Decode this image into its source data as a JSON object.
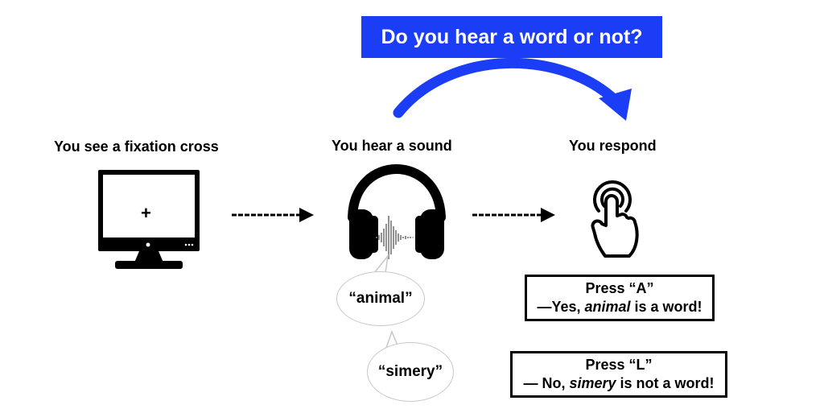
{
  "title": "Do you hear a word or not?",
  "steps": {
    "see": "You see a fixation cross",
    "hear": "You hear a sound",
    "respond": "You respond"
  },
  "monitor": {
    "cross": "+"
  },
  "bubbles": {
    "word": "“animal”",
    "nonword": "“simery”"
  },
  "responses": {
    "a": {
      "line1": "Press “A”",
      "line2_prefix": "—Yes, ",
      "line2_italic": "animal",
      "line2_suffix": " is a word!"
    },
    "l": {
      "line1": "Press “L”",
      "line2_prefix": "— No, ",
      "line2_italic": "simery",
      "line2_suffix": " is not a word!"
    }
  },
  "colors": {
    "accent": "#1a3df5",
    "ink": "#000000",
    "bubble_border": "#c8c8c8"
  },
  "icons": [
    "monitor-icon",
    "headphones-icon",
    "soundwave-icon",
    "tap-finger-icon"
  ]
}
